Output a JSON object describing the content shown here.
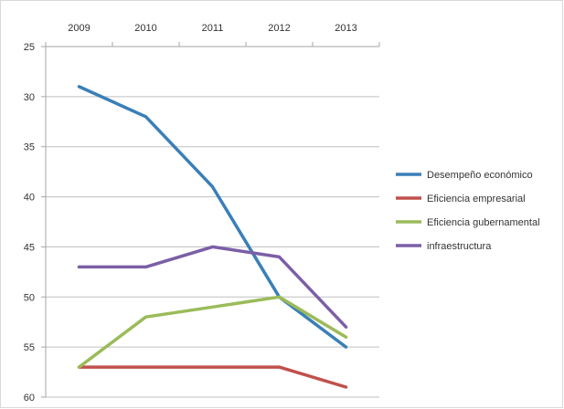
{
  "chart_data": {
    "type": "line",
    "categories": [
      "2009",
      "2010",
      "2011",
      "2012",
      "2013"
    ],
    "y_reversed": true,
    "ylim": [
      25,
      60
    ],
    "y_ticks": [
      25,
      30,
      35,
      40,
      45,
      50,
      55,
      60
    ],
    "x_axis_position": "top",
    "grid": "horizontal",
    "legend_position": "right",
    "series": [
      {
        "name": "Desempeño económico",
        "color": "#3a7fb8",
        "values": [
          29,
          32,
          39,
          50,
          55
        ]
      },
      {
        "name": "Eficiencia empresarial",
        "color": "#c0504d",
        "values": [
          57,
          57,
          57,
          57,
          59
        ]
      },
      {
        "name": "Eficiencia gubernamental",
        "color": "#9bbb59",
        "values": [
          57,
          52,
          51,
          50,
          54
        ]
      },
      {
        "name": "infraestructura",
        "color": "#7b5fa6",
        "values": [
          47,
          47,
          45,
          46,
          53
        ]
      }
    ]
  }
}
